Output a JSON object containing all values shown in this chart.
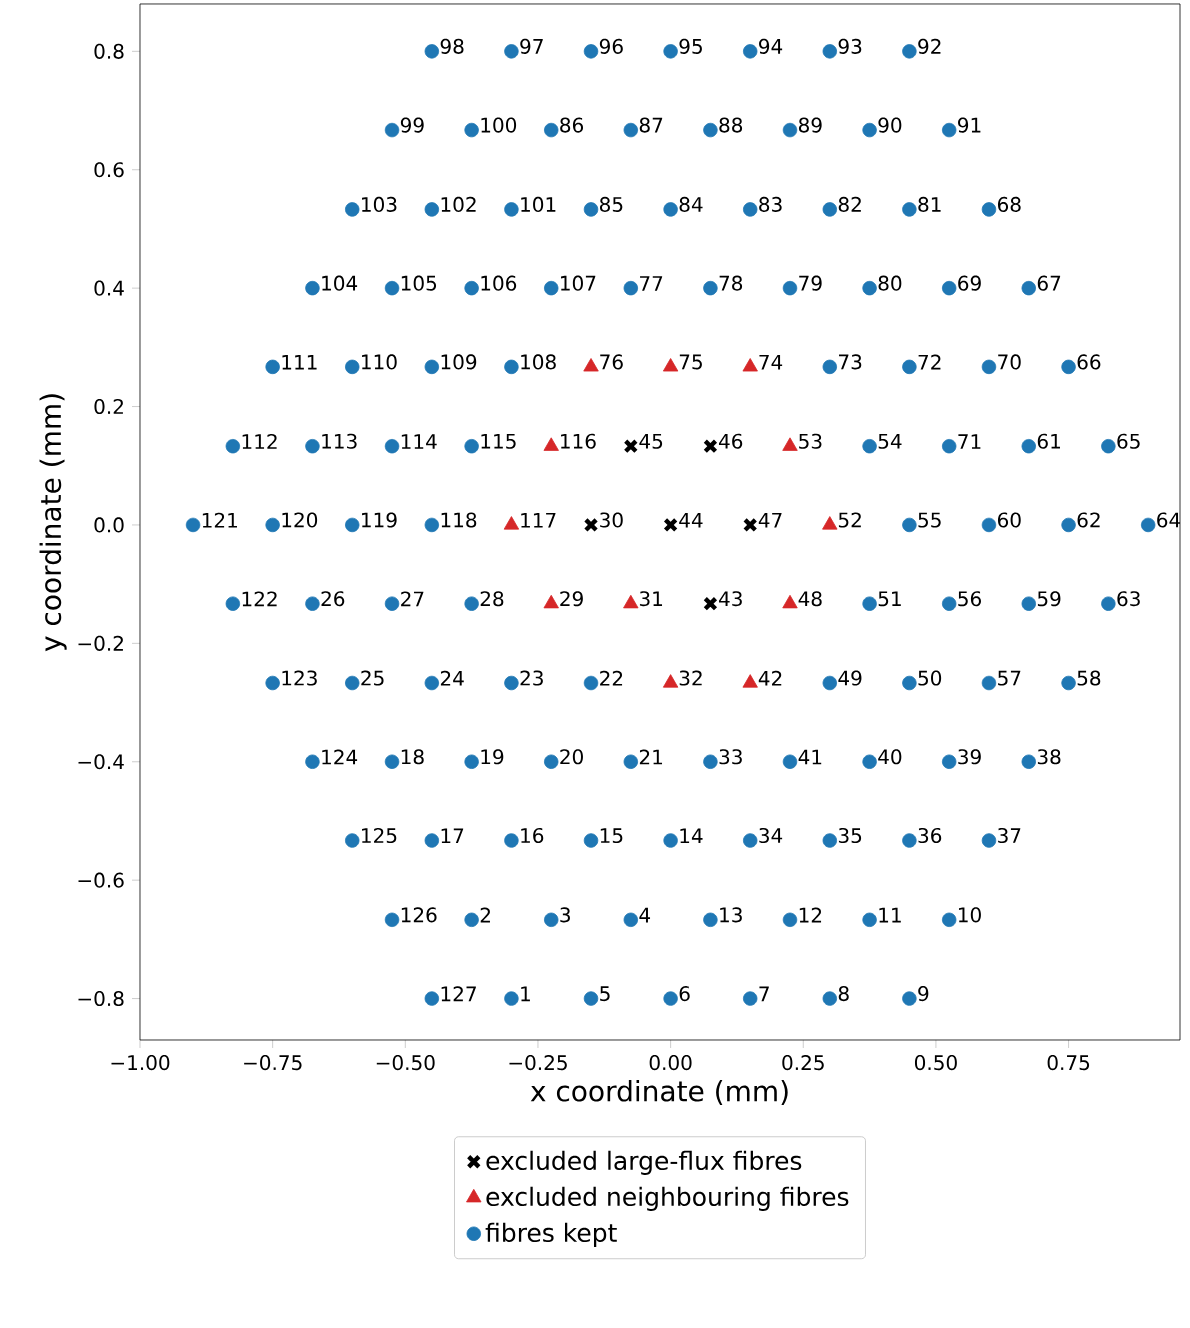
{
  "chart_data": {
    "type": "scatter",
    "xlabel": "x coordinate (mm)",
    "ylabel": "y coordinate (mm)",
    "xlim": [
      -1.0,
      0.96
    ],
    "ylim": [
      -0.87,
      0.88
    ],
    "xticks": [
      {
        "value": -1.0,
        "label": "−1.00"
      },
      {
        "value": -0.75,
        "label": "−0.75"
      },
      {
        "value": -0.5,
        "label": "−0.50"
      },
      {
        "value": -0.25,
        "label": "−0.25"
      },
      {
        "value": 0,
        "label": "0.00"
      },
      {
        "value": 0.25,
        "label": "0.25"
      },
      {
        "value": 0.5,
        "label": "0.50"
      },
      {
        "value": 0.75,
        "label": "0.75"
      }
    ],
    "yticks": [
      {
        "value": -0.8,
        "label": "−0.8"
      },
      {
        "value": -0.6,
        "label": "−0.6"
      },
      {
        "value": -0.4,
        "label": "−0.4"
      },
      {
        "value": -0.2,
        "label": "−0.2"
      },
      {
        "value": 0,
        "label": "0.0"
      },
      {
        "value": 0.2,
        "label": "0.2"
      },
      {
        "value": 0.4,
        "label": "0.4"
      },
      {
        "value": 0.6,
        "label": "0.6"
      },
      {
        "value": 0.8,
        "label": "0.8"
      }
    ],
    "legend": "bottom",
    "grid": false,
    "series": [
      {
        "name": "excluded large-flux fibres",
        "color": "#000000",
        "marker": "cross",
        "x": [
          -0.075,
          0.075,
          -0.15,
          0,
          0.15,
          0.075
        ],
        "values": [
          0.133,
          0.133,
          0,
          0,
          0,
          -0.133
        ]
      },
      {
        "name": "excluded neighbouring fibres",
        "color": "#d62728",
        "marker": "triangle",
        "x": [
          -0.15,
          0,
          0.15,
          -0.225,
          0.225,
          -0.3,
          0.3,
          -0.225,
          -0.075,
          0.225,
          0,
          0.15
        ],
        "values": [
          0.267,
          0.267,
          0.267,
          0.133,
          0.133,
          0,
          0,
          -0.133,
          -0.133,
          -0.133,
          -0.267,
          -0.267
        ]
      },
      {
        "name": "fibres kept",
        "color": "#1f77b4",
        "marker": "circle",
        "x": [
          -0.45,
          -0.3,
          -0.15,
          0,
          0.15,
          0.3,
          0.45,
          -0.525,
          -0.375,
          -0.225,
          -0.075,
          0.075,
          0.225,
          0.375,
          0.525,
          -0.6,
          -0.45,
          -0.3,
          -0.15,
          0,
          0.15,
          0.3,
          0.45,
          0.6,
          -0.675,
          -0.525,
          -0.375,
          -0.225,
          -0.075,
          0.075,
          0.225,
          0.375,
          0.525,
          0.675,
          -0.75,
          -0.6,
          -0.45,
          -0.3,
          0.3,
          0.45,
          0.6,
          0.75,
          -0.825,
          -0.675,
          -0.525,
          -0.375,
          0.375,
          0.525,
          0.675,
          0.825,
          -0.9,
          -0.75,
          -0.6,
          -0.45,
          0.45,
          0.6,
          0.75,
          0.9,
          -0.825,
          -0.675,
          -0.525,
          -0.375,
          0.375,
          0.525,
          0.675,
          0.825,
          -0.75,
          -0.6,
          -0.45,
          -0.3,
          -0.15,
          0.3,
          0.45,
          0.6,
          0.75,
          -0.675,
          -0.525,
          -0.375,
          -0.225,
          -0.075,
          0.075,
          0.225,
          0.375,
          0.525,
          0.675,
          -0.6,
          -0.45,
          -0.3,
          -0.15,
          0,
          0.15,
          0.3,
          0.45,
          0.6,
          -0.525,
          -0.375,
          -0.225,
          -0.075,
          0.075,
          0.225,
          0.375,
          0.525,
          -0.45,
          -0.3,
          -0.15,
          0,
          0.15,
          0.3,
          0.45
        ],
        "values": [
          0.8,
          0.8,
          0.8,
          0.8,
          0.8,
          0.8,
          0.8,
          0.667,
          0.667,
          0.667,
          0.667,
          0.667,
          0.667,
          0.667,
          0.667,
          0.533,
          0.533,
          0.533,
          0.533,
          0.533,
          0.533,
          0.533,
          0.533,
          0.533,
          0.4,
          0.4,
          0.4,
          0.4,
          0.4,
          0.4,
          0.4,
          0.4,
          0.4,
          0.4,
          0.267,
          0.267,
          0.267,
          0.267,
          0.267,
          0.267,
          0.267,
          0.267,
          0.133,
          0.133,
          0.133,
          0.133,
          0.133,
          0.133,
          0.133,
          0.133,
          0,
          0,
          0,
          0,
          0,
          0,
          0,
          0,
          -0.133,
          -0.133,
          -0.133,
          -0.133,
          -0.133,
          -0.133,
          -0.133,
          -0.133,
          -0.267,
          -0.267,
          -0.267,
          -0.267,
          -0.267,
          -0.267,
          -0.267,
          -0.267,
          -0.267,
          -0.4,
          -0.4,
          -0.4,
          -0.4,
          -0.4,
          -0.4,
          -0.4,
          -0.4,
          -0.4,
          -0.4,
          -0.533,
          -0.533,
          -0.533,
          -0.533,
          -0.533,
          -0.533,
          -0.533,
          -0.533,
          -0.533,
          -0.667,
          -0.667,
          -0.667,
          -0.667,
          -0.667,
          -0.667,
          -0.667,
          -0.667,
          -0.8,
          -0.8,
          -0.8,
          -0.8,
          -0.8,
          -0.8,
          -0.8
        ]
      }
    ],
    "annotations": [
      {
        "text": "45",
        "x": -0.075,
        "y": 0.133
      },
      {
        "text": "46",
        "x": 0.075,
        "y": 0.133
      },
      {
        "text": "30",
        "x": -0.15,
        "y": 0
      },
      {
        "text": "44",
        "x": 0,
        "y": 0
      },
      {
        "text": "47",
        "x": 0.15,
        "y": 0
      },
      {
        "text": "43",
        "x": 0.075,
        "y": -0.133
      },
      {
        "text": "76",
        "x": -0.15,
        "y": 0.267
      },
      {
        "text": "75",
        "x": 0,
        "y": 0.267
      },
      {
        "text": "74",
        "x": 0.15,
        "y": 0.267
      },
      {
        "text": "116",
        "x": -0.225,
        "y": 0.133
      },
      {
        "text": "53",
        "x": 0.225,
        "y": 0.133
      },
      {
        "text": "117",
        "x": -0.3,
        "y": 0
      },
      {
        "text": "52",
        "x": 0.3,
        "y": 0
      },
      {
        "text": "29",
        "x": -0.225,
        "y": -0.133
      },
      {
        "text": "31",
        "x": -0.075,
        "y": -0.133
      },
      {
        "text": "48",
        "x": 0.225,
        "y": -0.133
      },
      {
        "text": "32",
        "x": 0,
        "y": -0.267
      },
      {
        "text": "42",
        "x": 0.15,
        "y": -0.267
      },
      {
        "text": "98",
        "x": -0.45,
        "y": 0.8
      },
      {
        "text": "97",
        "x": -0.3,
        "y": 0.8
      },
      {
        "text": "96",
        "x": -0.15,
        "y": 0.8
      },
      {
        "text": "95",
        "x": 0,
        "y": 0.8
      },
      {
        "text": "94",
        "x": 0.15,
        "y": 0.8
      },
      {
        "text": "93",
        "x": 0.3,
        "y": 0.8
      },
      {
        "text": "92",
        "x": 0.45,
        "y": 0.8
      },
      {
        "text": "99",
        "x": -0.525,
        "y": 0.667
      },
      {
        "text": "100",
        "x": -0.375,
        "y": 0.667
      },
      {
        "text": "86",
        "x": -0.225,
        "y": 0.667
      },
      {
        "text": "87",
        "x": -0.075,
        "y": 0.667
      },
      {
        "text": "88",
        "x": 0.075,
        "y": 0.667
      },
      {
        "text": "89",
        "x": 0.225,
        "y": 0.667
      },
      {
        "text": "90",
        "x": 0.375,
        "y": 0.667
      },
      {
        "text": "91",
        "x": 0.525,
        "y": 0.667
      },
      {
        "text": "103",
        "x": -0.6,
        "y": 0.533
      },
      {
        "text": "102",
        "x": -0.45,
        "y": 0.533
      },
      {
        "text": "101",
        "x": -0.3,
        "y": 0.533
      },
      {
        "text": "85",
        "x": -0.15,
        "y": 0.533
      },
      {
        "text": "84",
        "x": 0,
        "y": 0.533
      },
      {
        "text": "83",
        "x": 0.15,
        "y": 0.533
      },
      {
        "text": "82",
        "x": 0.3,
        "y": 0.533
      },
      {
        "text": "81",
        "x": 0.45,
        "y": 0.533
      },
      {
        "text": "68",
        "x": 0.6,
        "y": 0.533
      },
      {
        "text": "104",
        "x": -0.675,
        "y": 0.4
      },
      {
        "text": "105",
        "x": -0.525,
        "y": 0.4
      },
      {
        "text": "106",
        "x": -0.375,
        "y": 0.4
      },
      {
        "text": "107",
        "x": -0.225,
        "y": 0.4
      },
      {
        "text": "77",
        "x": -0.075,
        "y": 0.4
      },
      {
        "text": "78",
        "x": 0.075,
        "y": 0.4
      },
      {
        "text": "79",
        "x": 0.225,
        "y": 0.4
      },
      {
        "text": "80",
        "x": 0.375,
        "y": 0.4
      },
      {
        "text": "69",
        "x": 0.525,
        "y": 0.4
      },
      {
        "text": "67",
        "x": 0.675,
        "y": 0.4
      },
      {
        "text": "111",
        "x": -0.75,
        "y": 0.267
      },
      {
        "text": "110",
        "x": -0.6,
        "y": 0.267
      },
      {
        "text": "109",
        "x": -0.45,
        "y": 0.267
      },
      {
        "text": "108",
        "x": -0.3,
        "y": 0.267
      },
      {
        "text": "73",
        "x": 0.3,
        "y": 0.267
      },
      {
        "text": "72",
        "x": 0.45,
        "y": 0.267
      },
      {
        "text": "70",
        "x": 0.6,
        "y": 0.267
      },
      {
        "text": "66",
        "x": 0.75,
        "y": 0.267
      },
      {
        "text": "112",
        "x": -0.825,
        "y": 0.133
      },
      {
        "text": "113",
        "x": -0.675,
        "y": 0.133
      },
      {
        "text": "114",
        "x": -0.525,
        "y": 0.133
      },
      {
        "text": "115",
        "x": -0.375,
        "y": 0.133
      },
      {
        "text": "54",
        "x": 0.375,
        "y": 0.133
      },
      {
        "text": "71",
        "x": 0.525,
        "y": 0.133
      },
      {
        "text": "61",
        "x": 0.675,
        "y": 0.133
      },
      {
        "text": "65",
        "x": 0.825,
        "y": 0.133
      },
      {
        "text": "121",
        "x": -0.9,
        "y": 0
      },
      {
        "text": "120",
        "x": -0.75,
        "y": 0
      },
      {
        "text": "119",
        "x": -0.6,
        "y": 0
      },
      {
        "text": "118",
        "x": -0.45,
        "y": 0
      },
      {
        "text": "55",
        "x": 0.45,
        "y": 0
      },
      {
        "text": "60",
        "x": 0.6,
        "y": 0
      },
      {
        "text": "62",
        "x": 0.75,
        "y": 0
      },
      {
        "text": "64",
        "x": 0.9,
        "y": 0
      },
      {
        "text": "122",
        "x": -0.825,
        "y": -0.133
      },
      {
        "text": "26",
        "x": -0.675,
        "y": -0.133
      },
      {
        "text": "27",
        "x": -0.525,
        "y": -0.133
      },
      {
        "text": "28",
        "x": -0.375,
        "y": -0.133
      },
      {
        "text": "51",
        "x": 0.375,
        "y": -0.133
      },
      {
        "text": "56",
        "x": 0.525,
        "y": -0.133
      },
      {
        "text": "59",
        "x": 0.675,
        "y": -0.133
      },
      {
        "text": "63",
        "x": 0.825,
        "y": -0.133
      },
      {
        "text": "123",
        "x": -0.75,
        "y": -0.267
      },
      {
        "text": "25",
        "x": -0.6,
        "y": -0.267
      },
      {
        "text": "24",
        "x": -0.45,
        "y": -0.267
      },
      {
        "text": "23",
        "x": -0.3,
        "y": -0.267
      },
      {
        "text": "22",
        "x": -0.15,
        "y": -0.267
      },
      {
        "text": "49",
        "x": 0.3,
        "y": -0.267
      },
      {
        "text": "50",
        "x": 0.45,
        "y": -0.267
      },
      {
        "text": "57",
        "x": 0.6,
        "y": -0.267
      },
      {
        "text": "58",
        "x": 0.75,
        "y": -0.267
      },
      {
        "text": "124",
        "x": -0.675,
        "y": -0.4
      },
      {
        "text": "18",
        "x": -0.525,
        "y": -0.4
      },
      {
        "text": "19",
        "x": -0.375,
        "y": -0.4
      },
      {
        "text": "20",
        "x": -0.225,
        "y": -0.4
      },
      {
        "text": "21",
        "x": -0.075,
        "y": -0.4
      },
      {
        "text": "33",
        "x": 0.075,
        "y": -0.4
      },
      {
        "text": "41",
        "x": 0.225,
        "y": -0.4
      },
      {
        "text": "40",
        "x": 0.375,
        "y": -0.4
      },
      {
        "text": "39",
        "x": 0.525,
        "y": -0.4
      },
      {
        "text": "38",
        "x": 0.675,
        "y": -0.4
      },
      {
        "text": "125",
        "x": -0.6,
        "y": -0.533
      },
      {
        "text": "17",
        "x": -0.45,
        "y": -0.533
      },
      {
        "text": "16",
        "x": -0.3,
        "y": -0.533
      },
      {
        "text": "15",
        "x": -0.15,
        "y": -0.533
      },
      {
        "text": "14",
        "x": 0,
        "y": -0.533
      },
      {
        "text": "34",
        "x": 0.15,
        "y": -0.533
      },
      {
        "text": "35",
        "x": 0.3,
        "y": -0.533
      },
      {
        "text": "36",
        "x": 0.45,
        "y": -0.533
      },
      {
        "text": "37",
        "x": 0.6,
        "y": -0.533
      },
      {
        "text": "126",
        "x": -0.525,
        "y": -0.667
      },
      {
        "text": "2",
        "x": -0.375,
        "y": -0.667
      },
      {
        "text": "3",
        "x": -0.225,
        "y": -0.667
      },
      {
        "text": "4",
        "x": -0.075,
        "y": -0.667
      },
      {
        "text": "13",
        "x": 0.075,
        "y": -0.667
      },
      {
        "text": "12",
        "x": 0.225,
        "y": -0.667
      },
      {
        "text": "11",
        "x": 0.375,
        "y": -0.667
      },
      {
        "text": "10",
        "x": 0.525,
        "y": -0.667
      },
      {
        "text": "127",
        "x": -0.45,
        "y": -0.8
      },
      {
        "text": "1",
        "x": -0.3,
        "y": -0.8
      },
      {
        "text": "5",
        "x": -0.15,
        "y": -0.8
      },
      {
        "text": "6",
        "x": 0,
        "y": -0.8
      },
      {
        "text": "7",
        "x": 0.15,
        "y": -0.8
      },
      {
        "text": "8",
        "x": 0.3,
        "y": -0.8
      },
      {
        "text": "9",
        "x": 0.45,
        "y": -0.8
      }
    ]
  }
}
